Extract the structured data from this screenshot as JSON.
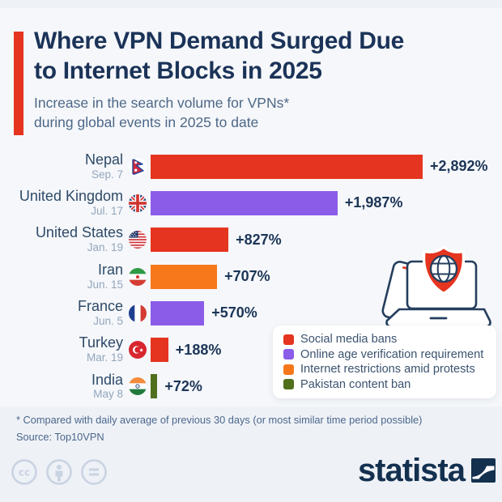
{
  "header": {
    "title_line1": "Where VPN Demand Surged Due",
    "title_line2": "to Internet Blocks in 2025",
    "subtitle_line1": "Increase in the search volume for VPNs*",
    "subtitle_line2": "during global events in 2025 to date"
  },
  "chart_data": {
    "type": "bar",
    "orientation": "horizontal",
    "value_unit": "% increase in VPN search volume",
    "max_value": 2892,
    "rows": [
      {
        "country": "Nepal",
        "date": "Sep. 7",
        "value": 2892,
        "label": "+2,892%",
        "category": "Social media bans",
        "color": "#e5341f",
        "flag": "nepal"
      },
      {
        "country": "United Kingdom",
        "date": "Jul. 17",
        "value": 1987,
        "label": "+1,987%",
        "category": "Online age verification requirement",
        "color": "#8a5ce8",
        "flag": "united-kingdom"
      },
      {
        "country": "United States",
        "date": "Jan. 19",
        "value": 827,
        "label": "+827%",
        "category": "Social media bans",
        "color": "#e5341f",
        "flag": "united-states"
      },
      {
        "country": "Iran",
        "date": "Jun. 15",
        "value": 707,
        "label": "+707%",
        "category": "Internet restrictions amid protests",
        "color": "#f6781a",
        "flag": "iran"
      },
      {
        "country": "France",
        "date": "Jun. 5",
        "value": 570,
        "label": "+570%",
        "category": "Online age verification requirement",
        "color": "#8a5ce8",
        "flag": "france"
      },
      {
        "country": "Turkey",
        "date": "Mar. 19",
        "value": 188,
        "label": "+188%",
        "category": "Social media bans",
        "color": "#e5341f",
        "flag": "turkey"
      },
      {
        "country": "India",
        "date": "May 8",
        "value": 72,
        "label": "+72%",
        "category": "Pakistan content ban",
        "color": "#516f1d",
        "flag": "india"
      }
    ],
    "legend": [
      {
        "label": "Social media bans",
        "color": "#e5341f"
      },
      {
        "label": "Online age verification requirement",
        "color": "#8a5ce8"
      },
      {
        "label": "Internet restrictions amid protests",
        "color": "#f6781a"
      },
      {
        "label": "Pakistan content ban",
        "color": "#516f1d"
      }
    ],
    "legend_position": "bottom-right",
    "grid": false
  },
  "footer": {
    "footnote": "* Compared with daily average of previous 30 days (or most similar time period possible)",
    "source": "Source: Top10VPN",
    "brand": "statista"
  },
  "colors": {
    "background": "#f5f7fa",
    "accent_red": "#e5341f",
    "navy_text": "#1b3358"
  }
}
